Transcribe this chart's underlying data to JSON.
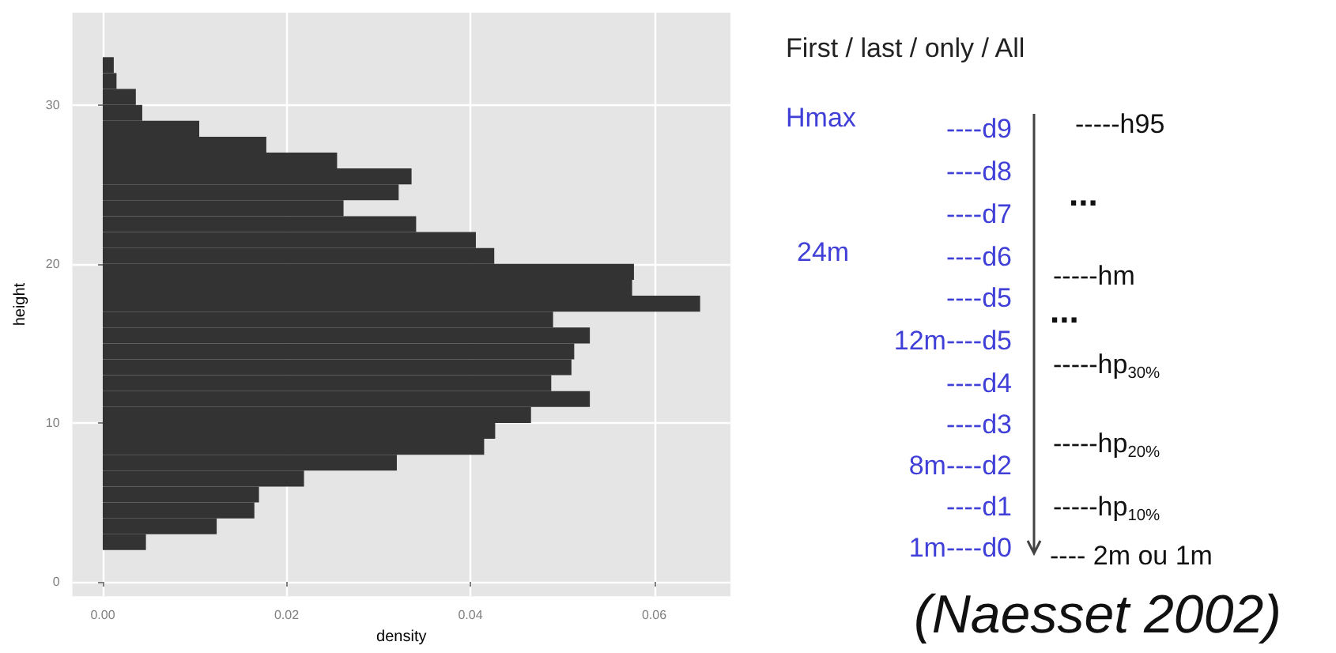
{
  "chart_data": {
    "type": "histogram",
    "orientation": "horizontal",
    "xlabel": "density",
    "ylabel": "height",
    "color": "#333333",
    "bins": [
      2,
      3,
      4,
      5,
      6,
      7,
      8,
      9,
      10,
      11,
      12,
      13,
      14,
      15,
      16,
      17,
      18,
      19,
      20,
      21,
      22,
      23,
      24,
      25,
      26,
      27,
      28,
      29,
      30,
      31,
      32,
      33
    ],
    "values": [
      0.0047,
      0.0124,
      0.0165,
      0.017,
      0.0219,
      0.032,
      0.0415,
      0.0427,
      0.0466,
      0.053,
      0.0488,
      0.051,
      0.0513,
      0.053,
      0.049,
      0.065,
      0.0576,
      0.0578,
      0.0426,
      0.0406,
      0.0341,
      0.0262,
      0.0322,
      0.0336,
      0.0255,
      0.0178,
      0.0105,
      0.0043,
      0.0036,
      0.0015,
      0.0012
    ],
    "xlim": [
      -0.0033,
      0.0683
    ],
    "ylim": [
      -0.9,
      35.8
    ],
    "xticks": [
      {
        "value": 0,
        "label": "0.00"
      },
      {
        "value": 0.02,
        "label": "0.02"
      },
      {
        "value": 0.04,
        "label": "0.04"
      },
      {
        "value": 0.06,
        "label": "0.06"
      }
    ],
    "yticks": [
      0,
      10,
      20,
      30
    ],
    "grid": true,
    "annotations": [
      "First / last / only / All",
      "Hmax",
      "----d9",
      "----d8",
      "----d7",
      "24m",
      "----d6",
      "----d5",
      "12m----d5",
      "----d4",
      "----d3",
      "8m----d2",
      "----d1",
      "1m----d0",
      "-----h95",
      "...",
      "-----hm",
      "...",
      "-----hp$_{30%}$",
      "-----hp$_{20%}$",
      "-----hp$_{10%}$",
      "---- 2m ou 1m",
      "(Naesset  2002)"
    ]
  }
}
